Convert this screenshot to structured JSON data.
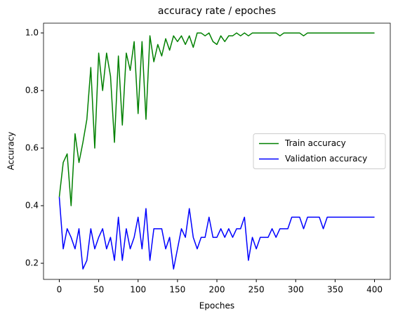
{
  "chart_data": {
    "type": "line",
    "title": "accuracy rate / epoches",
    "xlabel": "Epoches",
    "ylabel": "Accuracy",
    "x": [
      0,
      5,
      10,
      15,
      20,
      25,
      30,
      35,
      40,
      45,
      50,
      55,
      60,
      65,
      70,
      75,
      80,
      85,
      90,
      95,
      100,
      105,
      110,
      115,
      120,
      125,
      130,
      135,
      140,
      145,
      150,
      155,
      160,
      165,
      170,
      175,
      180,
      185,
      190,
      195,
      200,
      205,
      210,
      215,
      220,
      225,
      230,
      235,
      240,
      245,
      250,
      255,
      260,
      265,
      270,
      275,
      280,
      285,
      290,
      295,
      300,
      305,
      310,
      315,
      320,
      325,
      330,
      335,
      340,
      345,
      350,
      355,
      360,
      365,
      370,
      375,
      380,
      385,
      390,
      395,
      400
    ],
    "series": [
      {
        "name": "Train accuracy",
        "color": "#008000",
        "values": [
          0.43,
          0.55,
          0.58,
          0.4,
          0.65,
          0.55,
          0.62,
          0.7,
          0.88,
          0.6,
          0.93,
          0.8,
          0.93,
          0.85,
          0.62,
          0.92,
          0.68,
          0.93,
          0.87,
          0.97,
          0.72,
          0.97,
          0.7,
          0.99,
          0.9,
          0.96,
          0.92,
          0.98,
          0.94,
          0.99,
          0.97,
          0.99,
          0.96,
          0.99,
          0.95,
          1.0,
          1.0,
          0.99,
          1.0,
          0.97,
          0.96,
          0.99,
          0.97,
          0.99,
          0.99,
          1.0,
          0.99,
          1.0,
          0.99,
          1.0,
          1.0,
          1.0,
          1.0,
          1.0,
          1.0,
          1.0,
          0.99,
          1.0,
          1.0,
          1.0,
          1.0,
          1.0,
          0.99,
          1.0,
          1.0,
          1.0,
          1.0,
          1.0,
          1.0,
          1.0,
          1.0,
          1.0,
          1.0,
          1.0,
          1.0,
          1.0,
          1.0,
          1.0,
          1.0,
          1.0,
          1.0
        ]
      },
      {
        "name": "Validation accuracy",
        "color": "#0000ff",
        "values": [
          0.43,
          0.25,
          0.32,
          0.29,
          0.25,
          0.32,
          0.18,
          0.21,
          0.32,
          0.25,
          0.29,
          0.32,
          0.25,
          0.29,
          0.21,
          0.36,
          0.21,
          0.32,
          0.25,
          0.29,
          0.36,
          0.25,
          0.39,
          0.21,
          0.32,
          0.32,
          0.32,
          0.25,
          0.29,
          0.18,
          0.25,
          0.32,
          0.29,
          0.39,
          0.29,
          0.25,
          0.29,
          0.29,
          0.36,
          0.29,
          0.29,
          0.32,
          0.29,
          0.32,
          0.29,
          0.32,
          0.32,
          0.36,
          0.21,
          0.29,
          0.25,
          0.29,
          0.29,
          0.29,
          0.32,
          0.29,
          0.32,
          0.32,
          0.32,
          0.36,
          0.36,
          0.36,
          0.32,
          0.36,
          0.36,
          0.36,
          0.36,
          0.32,
          0.36,
          0.36,
          0.36,
          0.36,
          0.36,
          0.36,
          0.36,
          0.36,
          0.36,
          0.36,
          0.36,
          0.36,
          0.36
        ]
      }
    ],
    "xlim": [
      -20,
      420
    ],
    "xticks": [
      0,
      50,
      100,
      150,
      200,
      250,
      300,
      350,
      400
    ],
    "ylim": [
      0.144,
      1.034
    ],
    "yticks": [
      0.2,
      0.4,
      0.6,
      0.8,
      {
        "value": 1,
        "label": "1.0"
      }
    ],
    "grid": false,
    "legend": "center right"
  }
}
